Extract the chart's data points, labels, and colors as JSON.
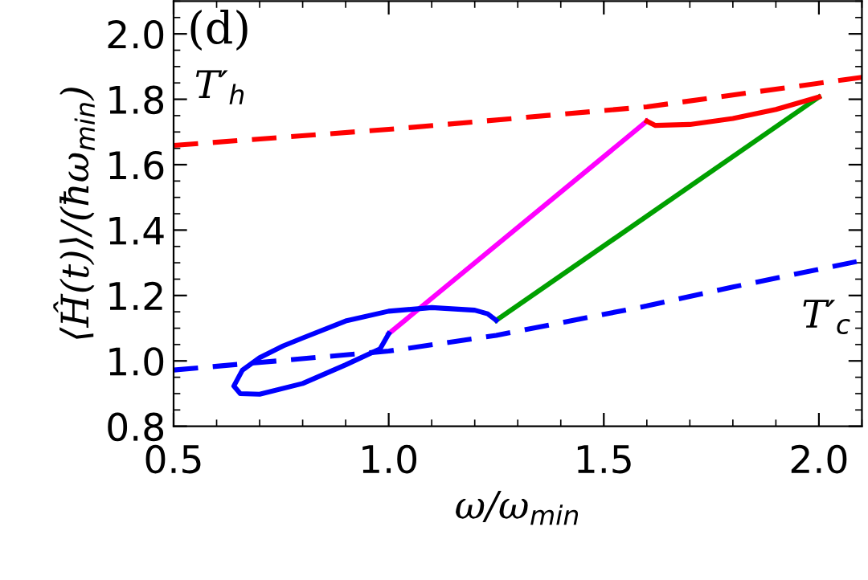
{
  "chart_data": {
    "type": "line",
    "xlabel": "ω/ω$_{min}$",
    "ylabel": "⟨Ĥ(t)⟩/(ħω$_{min}$)",
    "xlim": [
      0.5,
      2.1
    ],
    "ylim": [
      0.8,
      2.1
    ],
    "xticks": [
      0.5,
      {
        "value": 1,
        "label": "1.0"
      },
      1.5,
      {
        "value": 2,
        "label": "2.0"
      }
    ],
    "yticks": [
      0.8,
      {
        "value": 1,
        "label": "1.0"
      },
      1.2,
      1.4,
      1.6,
      1.8,
      {
        "value": 2,
        "label": "2.0"
      }
    ],
    "grid": false,
    "legend": false,
    "marker": "none",
    "annotations": [
      "(d)",
      "T′$_{h}$",
      "T′$_{c}$"
    ],
    "series": [
      {
        "color": "#ff0000",
        "line_style": "dashed",
        "x": [
          0.5,
          1.0,
          1.6,
          2.1
        ],
        "values": [
          1.659,
          1.708,
          1.777,
          1.867
        ]
      },
      {
        "color": "#0000ff",
        "line_style": "dashed",
        "x": [
          0.5,
          1.0,
          1.25,
          1.6,
          1.8,
          2.1
        ],
        "values": [
          0.972,
          1.03,
          1.078,
          1.168,
          1.226,
          1.307
        ]
      },
      {
        "color": "#ff00ff",
        "line_style": "solid",
        "x": [
          1.0,
          1.6
        ],
        "values": [
          1.083,
          1.733
        ]
      },
      {
        "color": "#00a000",
        "line_style": "solid",
        "x": [
          1.25,
          2.0
        ],
        "values": [
          1.124,
          1.807
        ]
      },
      {
        "color": "#ff0000",
        "line_style": "solid",
        "x": [
          1.6,
          1.62,
          1.7,
          1.8,
          1.9,
          2.0
        ],
        "values": [
          1.733,
          1.72,
          1.723,
          1.741,
          1.769,
          1.807
        ]
      },
      {
        "color": "#0000ff",
        "line_style": "solid",
        "x": [
          1.0,
          0.98,
          0.9,
          0.8,
          0.7,
          0.655,
          0.64,
          0.66,
          0.7,
          0.755,
          0.8,
          0.9,
          1.0,
          1.1,
          1.2,
          1.23,
          1.25
        ],
        "values": [
          1.083,
          1.037,
          0.988,
          0.931,
          0.898,
          0.9,
          0.923,
          0.972,
          1.01,
          1.046,
          1.07,
          1.122,
          1.152,
          1.163,
          1.155,
          1.144,
          1.124
        ]
      }
    ]
  }
}
